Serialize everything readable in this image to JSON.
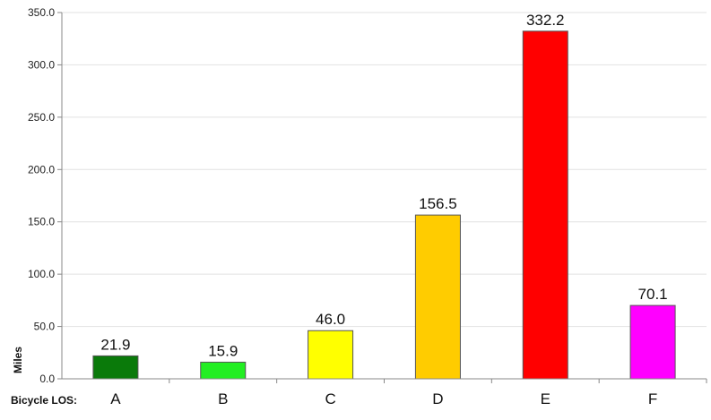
{
  "chart_data": {
    "type": "bar",
    "title": "",
    "xlabel": "Bicycle LOS:",
    "ylabel": "Miles",
    "ylim": [
      0,
      350
    ],
    "yticks": [
      0,
      50,
      100,
      150,
      200,
      250,
      300,
      350
    ],
    "ytick_format_decimals": 1,
    "grid": true,
    "categories": [
      "A",
      "B",
      "C",
      "D",
      "E",
      "F"
    ],
    "values": [
      21.9,
      15.9,
      46.0,
      156.5,
      332.2,
      70.1
    ],
    "data_labels": [
      "21.9",
      "15.9",
      "46.0",
      "156.5",
      "332.2",
      "70.1"
    ],
    "colors": [
      "#0a7a0a",
      "#22ee22",
      "#ffff00",
      "#ffcc00",
      "#ff0000",
      "#ff00ff"
    ]
  }
}
